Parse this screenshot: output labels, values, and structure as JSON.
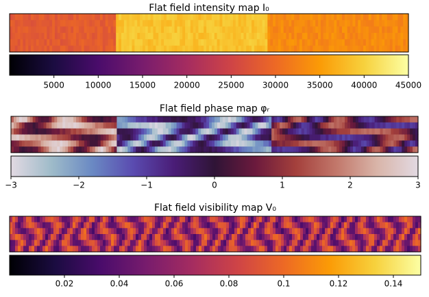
{
  "chart_data": [
    {
      "type": "heatmap",
      "title": "Flat field intensity map I₀",
      "clim": [
        0,
        45000
      ],
      "colorbar_ticks": [
        5000,
        10000,
        15000,
        20000,
        25000,
        30000,
        35000,
        40000,
        45000
      ],
      "colors": [
        "#000004",
        "#1b0c41",
        "#4a0c6b",
        "#781c6d",
        "#a52c60",
        "#cf4446",
        "#ed6925",
        "#fb9b06",
        "#f7d13d",
        "#fcffa4"
      ]
    },
    {
      "type": "heatmap",
      "title": "Flat field phase map φᵣ",
      "clim": [
        -3,
        3
      ],
      "colorbar_ticks": [
        {
          "value": -3,
          "label": "−3"
        },
        {
          "value": -2,
          "label": "−2"
        },
        {
          "value": -1,
          "label": "−1"
        },
        0,
        1,
        2,
        3
      ],
      "colors": [
        "#e2d9e2",
        "#9ebbc9",
        "#6a89c3",
        "#5a4bb0",
        "#4a1d77",
        "#2f1436",
        "#6b1a3d",
        "#a4403c",
        "#c2786b",
        "#d9b5a9",
        "#e2d9e2"
      ]
    },
    {
      "type": "heatmap",
      "title": "Flat field visibility map V₀",
      "clim": [
        0,
        0.15
      ],
      "colorbar_ticks": [
        0.02,
        0.04,
        0.06,
        0.08,
        0.1,
        0.12,
        0.14
      ],
      "colors": [
        "#000004",
        "#1b0c41",
        "#4a0c6b",
        "#781c6d",
        "#a52c60",
        "#cf4446",
        "#ed6925",
        "#fb9b06",
        "#f7d13d",
        "#fcffa4"
      ]
    }
  ]
}
